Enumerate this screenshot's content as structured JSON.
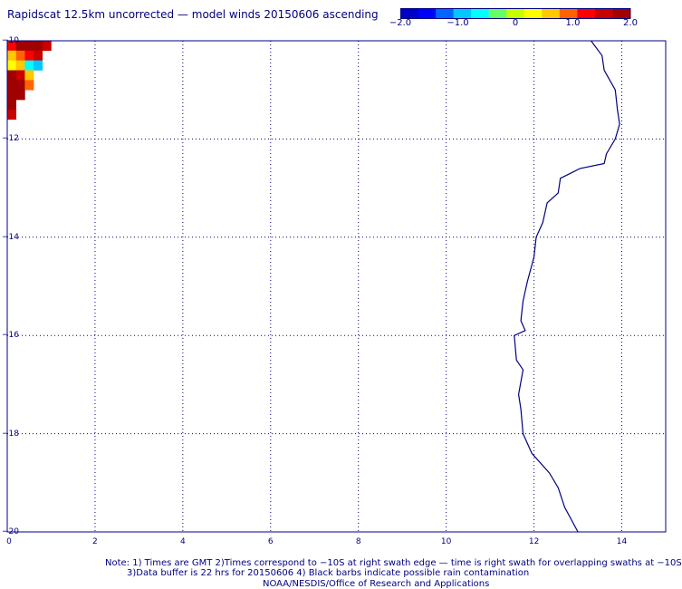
{
  "title": "Rapidscat 12.5km uncorrected — model winds 20150606 ascending",
  "colorbar": {
    "ticks": [
      "−2.0",
      "−1.0",
      "0",
      "1.0",
      "2.0"
    ],
    "colors": [
      "#0000c8",
      "#0000ff",
      "#0064ff",
      "#00c8ff",
      "#00ffff",
      "#64ff64",
      "#c8ff00",
      "#ffff00",
      "#ffc800",
      "#ff6400",
      "#ff0000",
      "#c80000",
      "#a00000"
    ]
  },
  "map": {
    "y_axis_labels": [
      "−10",
      "−12",
      "−14",
      "−16",
      "−18",
      "−20"
    ],
    "x_axis_labels": [
      "0",
      "2",
      "4",
      "6",
      "8",
      "10",
      "12",
      "14"
    ],
    "lat_range": [
      -20,
      -10
    ],
    "lon_range": [
      0,
      15
    ],
    "grid": true,
    "coastline_color": "#000080",
    "coastline": [
      [
        13.3,
        -10.0
      ],
      [
        13.55,
        -10.3
      ],
      [
        13.6,
        -10.6
      ],
      [
        13.85,
        -11.0
      ],
      [
        13.9,
        -11.4
      ],
      [
        13.95,
        -11.7
      ],
      [
        13.85,
        -12.0
      ],
      [
        13.65,
        -12.3
      ],
      [
        13.6,
        -12.5
      ],
      [
        13.05,
        -12.6
      ],
      [
        12.6,
        -12.8
      ],
      [
        12.55,
        -13.1
      ],
      [
        12.3,
        -13.3
      ],
      [
        12.2,
        -13.7
      ],
      [
        12.05,
        -14.0
      ],
      [
        12.0,
        -14.4
      ],
      [
        11.85,
        -14.9
      ],
      [
        11.75,
        -15.3
      ],
      [
        11.7,
        -15.7
      ],
      [
        11.8,
        -15.9
      ],
      [
        11.55,
        -16.0
      ],
      [
        11.6,
        -16.5
      ],
      [
        11.75,
        -16.7
      ],
      [
        11.65,
        -17.2
      ],
      [
        11.7,
        -17.5
      ],
      [
        11.75,
        -18.0
      ],
      [
        11.95,
        -18.4
      ],
      [
        12.35,
        -18.8
      ],
      [
        12.55,
        -19.1
      ],
      [
        12.7,
        -19.5
      ],
      [
        13.0,
        -20.0
      ]
    ],
    "wind_cells": [
      {
        "lon": 0.0,
        "lat": -10.0,
        "v": 1.3
      },
      {
        "lon": 0.2,
        "lat": -10.0,
        "v": 1.8
      },
      {
        "lon": 0.4,
        "lat": -10.0,
        "v": 2.0
      },
      {
        "lon": 0.6,
        "lat": -10.0,
        "v": 1.9
      },
      {
        "lon": 0.8,
        "lat": -10.0,
        "v": 1.5
      },
      {
        "lon": 0.0,
        "lat": -10.2,
        "v": 0.6
      },
      {
        "lon": 0.2,
        "lat": -10.2,
        "v": 0.9
      },
      {
        "lon": 0.4,
        "lat": -10.2,
        "v": 1.2
      },
      {
        "lon": 0.6,
        "lat": -10.2,
        "v": 1.4
      },
      {
        "lon": 0.0,
        "lat": -10.4,
        "v": 0.3
      },
      {
        "lon": 0.2,
        "lat": -10.4,
        "v": 0.5
      },
      {
        "lon": 0.4,
        "lat": -10.4,
        "v": -0.5
      },
      {
        "lon": 0.6,
        "lat": -10.4,
        "v": -0.8
      },
      {
        "lon": 0.0,
        "lat": -10.6,
        "v": 2.0
      },
      {
        "lon": 0.2,
        "lat": -10.6,
        "v": 1.4
      },
      {
        "lon": 0.4,
        "lat": -10.6,
        "v": 0.7
      },
      {
        "lon": 0.0,
        "lat": -10.8,
        "v": 2.0
      },
      {
        "lon": 0.2,
        "lat": -10.8,
        "v": 2.0
      },
      {
        "lon": 0.4,
        "lat": -10.8,
        "v": 1.0
      },
      {
        "lon": 0.0,
        "lat": -11.0,
        "v": 2.0
      },
      {
        "lon": 0.2,
        "lat": -11.0,
        "v": 1.9
      },
      {
        "lon": 0.0,
        "lat": -11.2,
        "v": 2.0
      },
      {
        "lon": 0.0,
        "lat": -11.4,
        "v": 1.6
      }
    ]
  },
  "footer": {
    "line1": "Note: 1) Times are GMT 2)Times correspond to −10S at right swath edge — time is right swath for overlapping swaths at −10S",
    "line2": "3)Data buffer is 22 hrs for 20150606 4) Black barbs indicate possible rain contamination",
    "line3": "NOAA/NESDIS/Office of Research and Applications"
  }
}
